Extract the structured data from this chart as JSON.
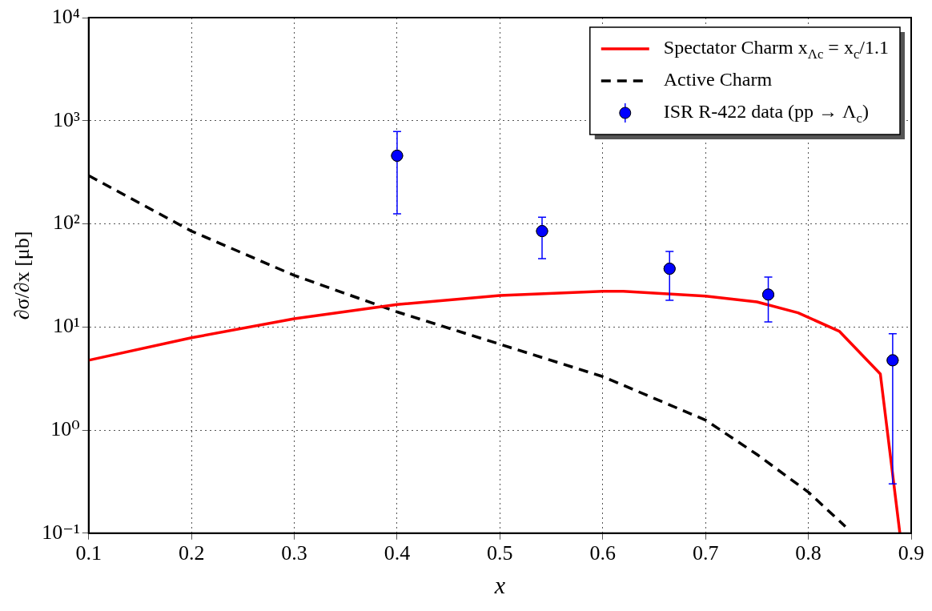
{
  "chart_data": {
    "type": "line",
    "xlabel": "x",
    "ylabel": "∂σ/∂x [μb]",
    "xlim": [
      0.1,
      0.9
    ],
    "xticks": [
      0.1,
      0.2,
      0.3,
      0.4,
      0.5,
      0.6,
      0.7,
      0.8,
      0.9
    ],
    "ylim": [
      0.1,
      10000
    ],
    "yticks": [
      {
        "value": 0.1,
        "label": "10⁻¹"
      },
      {
        "value": 1,
        "label": "10⁰"
      },
      {
        "value": 10,
        "label": "10¹"
      },
      {
        "value": 100,
        "label": "10²"
      },
      {
        "value": 1000,
        "label": "10³"
      },
      {
        "value": 10000,
        "label": "10⁴"
      }
    ],
    "log": "y",
    "grid": true,
    "legend": "top right",
    "series": [
      {
        "name": "Spectator Charm x$_{Λc}$ = x$_{c}$/1.1",
        "color": "#ff0000",
        "line_style": "solid",
        "marker": "none",
        "x": [
          0.1,
          0.2,
          0.3,
          0.4,
          0.5,
          0.6,
          0.62,
          0.7,
          0.75,
          0.79,
          0.83,
          0.87,
          0.889
        ],
        "values": [
          4.75,
          7.85,
          12.0,
          16.5,
          20.2,
          22.2,
          22.2,
          19.9,
          17.5,
          13.7,
          9.1,
          3.5,
          0.1
        ]
      },
      {
        "name": "Active Charm",
        "color": "#000000",
        "line_style": "dashed",
        "marker": "none",
        "x": [
          0.1,
          0.2,
          0.3,
          0.4,
          0.5,
          0.6,
          0.7,
          0.75,
          0.8,
          0.836
        ],
        "values": [
          294,
          85,
          31.6,
          14,
          6.8,
          3.3,
          1.25,
          0.58,
          0.25,
          0.116
        ]
      },
      {
        "type": "scatter",
        "name": "ISR R-422 data (pp → Λ$_{c}$)",
        "color": "#0000ff",
        "marker": "circle",
        "x": [
          0.4,
          0.541,
          0.665,
          0.761,
          0.882
        ],
        "values": [
          458,
          85,
          36.7,
          20.6,
          4.75
        ],
        "errors": [
          [
            125,
            785
          ],
          [
            46,
            116
          ],
          [
            18.1,
            54
          ],
          [
            11.2,
            30.5
          ],
          [
            0.3,
            8.6
          ]
        ]
      }
    ]
  }
}
